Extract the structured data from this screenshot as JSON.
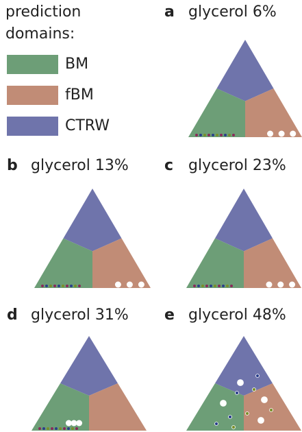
{
  "legend": {
    "title": [
      "prediction",
      "domains:"
    ],
    "items": [
      "BM",
      "fBM",
      "CTRW"
    ]
  },
  "panels": [
    {
      "letter": "a",
      "title": "glycerol 6%"
    },
    {
      "letter": "b",
      "title": "glycerol 13%"
    },
    {
      "letter": "c",
      "title": "glycerol 23%"
    },
    {
      "letter": "d",
      "title": "glycerol 31%"
    },
    {
      "letter": "e",
      "title": "glycerol 48%"
    }
  ]
}
